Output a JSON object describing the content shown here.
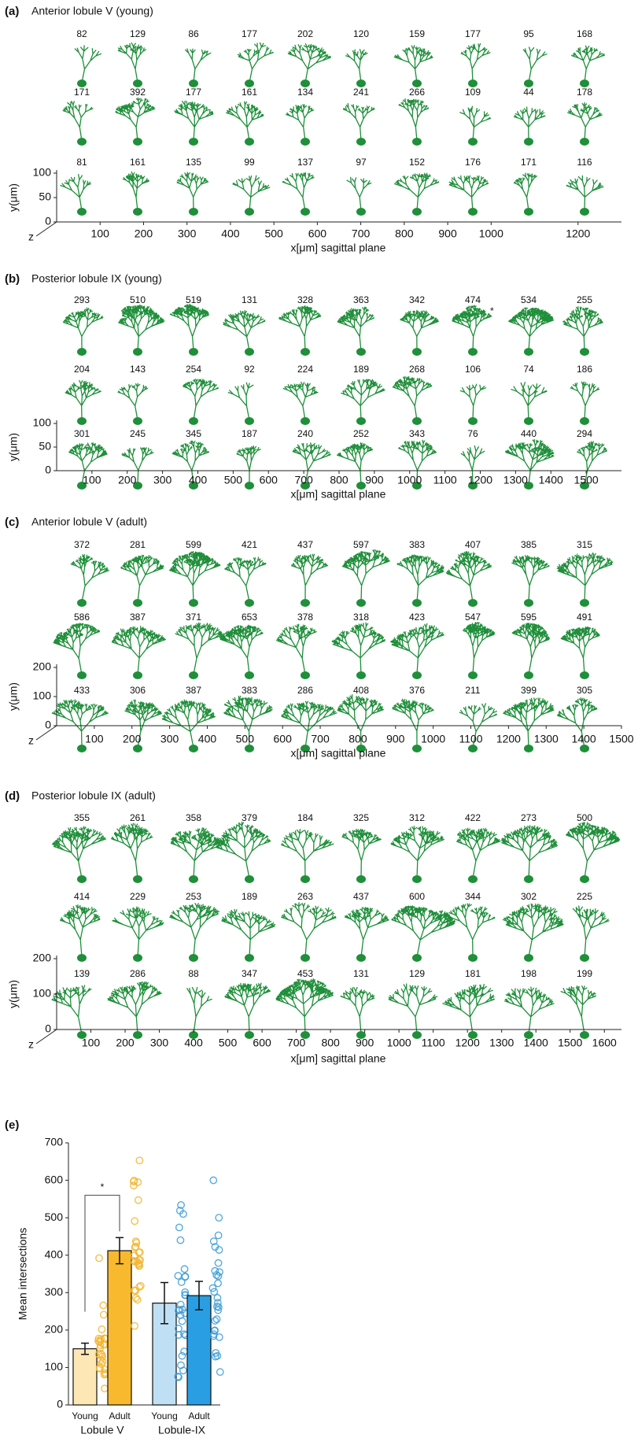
{
  "chart_data": [
    {
      "type": "morphology",
      "label": "(a)",
      "title": "Anterior lobule V (young)",
      "rows": [
        [
          82,
          129,
          86,
          177,
          202,
          120,
          159,
          177,
          95,
          168
        ],
        [
          171,
          392,
          177,
          161,
          134,
          241,
          266,
          109,
          44,
          178
        ],
        [
          81,
          161,
          135,
          99,
          137,
          97,
          152,
          176,
          171,
          116
        ]
      ],
      "color": "#1f8f3a",
      "xlabel": "x[μm] sagittal plane",
      "ylabel": "y(μm)",
      "zlabel": "z",
      "xlim": [
        0,
        1300
      ],
      "xticks": [
        100,
        200,
        300,
        400,
        500,
        600,
        700,
        800,
        900,
        1000,
        1200
      ],
      "ylim": [
        0,
        100
      ],
      "yticks": [
        0,
        50,
        100
      ]
    },
    {
      "type": "morphology",
      "label": "(b)",
      "title": "Posterior lobule IX (young)",
      "rows": [
        [
          293,
          510,
          519,
          131,
          328,
          363,
          342,
          474,
          534,
          255
        ],
        [
          204,
          143,
          254,
          92,
          224,
          189,
          268,
          106,
          74,
          186
        ],
        [
          301,
          245,
          345,
          187,
          240,
          252,
          343,
          76,
          440,
          294
        ]
      ],
      "color": "#1f8f3a",
      "marker": "*",
      "xlabel": "x[μm] sagittal plane",
      "ylabel": "y(μm)",
      "xlim": [
        0,
        1600
      ],
      "xticks": [
        100,
        200,
        300,
        400,
        500,
        600,
        700,
        800,
        900,
        1000,
        1100,
        1200,
        1300,
        1400,
        1500
      ],
      "ylim": [
        0,
        100
      ],
      "yticks": [
        0,
        50,
        100
      ]
    },
    {
      "type": "morphology",
      "label": "(c)",
      "title": "Anterior lobule V (adult)",
      "rows": [
        [
          372,
          281,
          599,
          421,
          437,
          597,
          383,
          407,
          385,
          315
        ],
        [
          586,
          387,
          371,
          653,
          378,
          318,
          423,
          547,
          595,
          491
        ],
        [
          433,
          306,
          387,
          383,
          286,
          408,
          376,
          211,
          399,
          305
        ]
      ],
      "color": "#1f8f3a",
      "xlabel": "x[μm] sagittal plane",
      "ylabel": "y(μm)",
      "zlabel": "z",
      "xlim": [
        0,
        1500
      ],
      "xticks": [
        100,
        200,
        300,
        400,
        500,
        600,
        700,
        800,
        900,
        1000,
        1100,
        1200,
        1300,
        1400,
        1500
      ],
      "ylim": [
        0,
        200
      ],
      "yticks": [
        0,
        100,
        200
      ]
    },
    {
      "type": "morphology",
      "label": "(d)",
      "title": "Posterior lobule IX (adult)",
      "rows": [
        [
          355,
          261,
          358,
          379,
          184,
          325,
          312,
          422,
          273,
          500
        ],
        [
          414,
          229,
          253,
          189,
          263,
          437,
          600,
          344,
          302,
          225
        ],
        [
          139,
          286,
          88,
          347,
          453,
          131,
          129,
          181,
          198,
          199
        ]
      ],
      "color": "#1f8f3a",
      "xlabel": "x[μm] sagittal plane",
      "ylabel": "y(μm)",
      "zlabel": "z",
      "xlim": [
        0,
        1650
      ],
      "xticks": [
        100,
        200,
        300,
        400,
        500,
        600,
        700,
        800,
        900,
        1000,
        1100,
        1200,
        1300,
        1400,
        1500,
        1600
      ],
      "ylim": [
        0,
        200
      ],
      "yticks": [
        0,
        100,
        200
      ]
    },
    {
      "type": "bar",
      "label": "(e)",
      "ylabel": "Mean intersections",
      "categories": [
        "Young",
        "Adult",
        "Young",
        "Adult"
      ],
      "groups": [
        "Lobule V",
        "Lobule-IX"
      ],
      "values": [
        150,
        412,
        272,
        292
      ],
      "errors": [
        15,
        35,
        55,
        38
      ],
      "colors": [
        "#fde8b5",
        "#f8b92e",
        "#bfe0f4",
        "#2a9ee2"
      ],
      "point_colors": [
        "#f3b530",
        "#f3b530",
        "#3b9bd8",
        "#3b9bd8"
      ],
      "significance": "*",
      "ylim": [
        0,
        700
      ],
      "yticks": [
        0,
        100,
        200,
        300,
        400,
        500,
        600,
        700
      ]
    }
  ]
}
